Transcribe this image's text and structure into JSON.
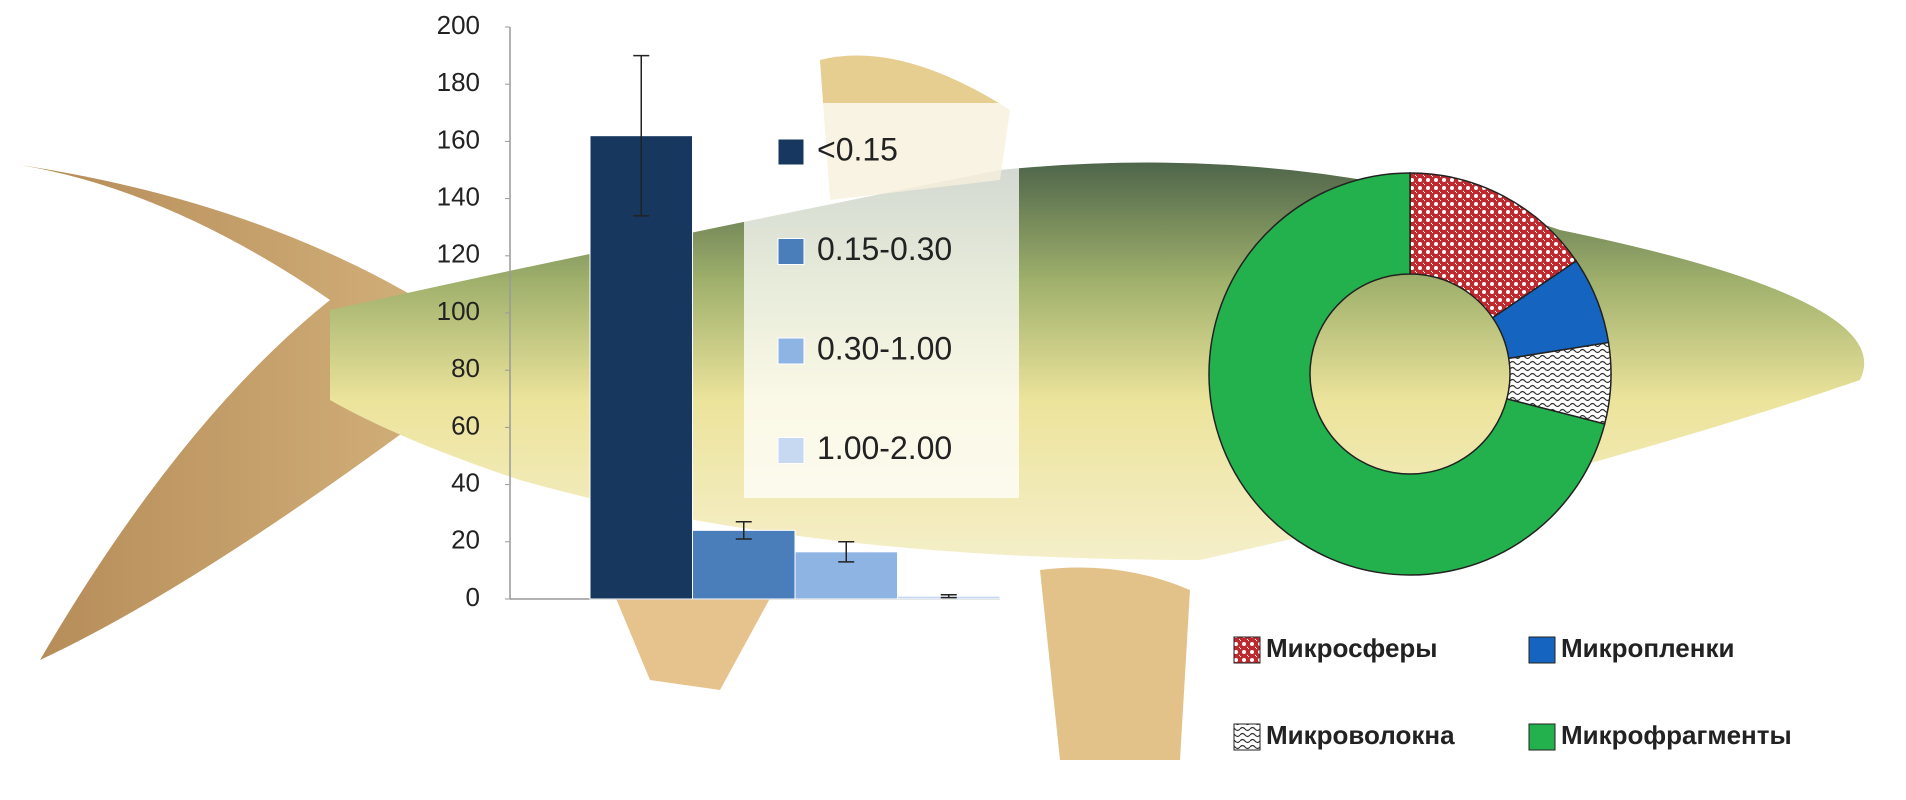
{
  "chart_data": [
    {
      "type": "bar",
      "categories": [
        "<0.15",
        "0.15-0.30",
        "0.30-1.00",
        "1.00-2.00"
      ],
      "values": [
        162,
        24,
        16.5,
        1
      ],
      "errors": [
        28,
        3,
        3.5,
        0.5
      ],
      "colors": [
        "#17375e",
        "#4a7ebb",
        "#8eb4e3",
        "#c6d9f1"
      ],
      "ylim": [
        0,
        200
      ],
      "yticks": [
        0,
        20,
        40,
        60,
        80,
        100,
        120,
        140,
        160,
        180,
        200
      ]
    },
    {
      "type": "donut",
      "categories": [
        "Микросферы",
        "Микропленки",
        "Микроволокна",
        "Микрофрагменты"
      ],
      "values": [
        15.5,
        7,
        6.5,
        71
      ],
      "colors": [
        "#c0282d",
        "#1565c0",
        "#555555",
        "#22b14c"
      ],
      "patterns": [
        "dots",
        "solid",
        "waves",
        "solid"
      ]
    }
  ]
}
